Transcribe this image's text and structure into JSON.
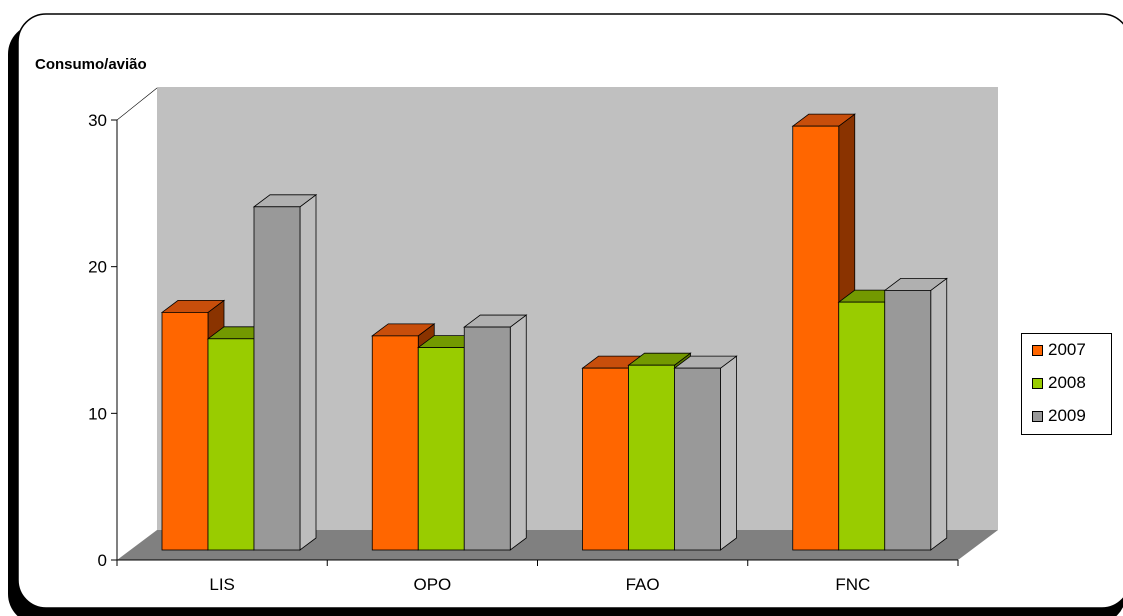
{
  "chart_data": {
    "type": "bar",
    "title": "Consumo/avião",
    "categories": [
      "LIS",
      "OPO",
      "FAO",
      "FNC"
    ],
    "series": [
      {
        "name": "2007",
        "values": [
          16.2,
          14.6,
          12.4,
          28.9
        ],
        "color": "#ff6600",
        "top_color": "#c84e0b",
        "side_color": "#8a3300"
      },
      {
        "name": "2008",
        "values": [
          14.4,
          13.8,
          12.6,
          16.9
        ],
        "color": "#99cc00",
        "top_color": "#739900",
        "side_color": "#5a7800"
      },
      {
        "name": "2009",
        "values": [
          23.4,
          15.2,
          12.4,
          17.7
        ],
        "color": "#999999",
        "top_color": "#b0b0b0",
        "side_color": "#bdbdbd"
      }
    ],
    "yticks": [
      0,
      10,
      20,
      30
    ],
    "ylim": [
      0,
      30
    ],
    "grid": false,
    "legend": "right",
    "xlabel": "",
    "ylabel": "",
    "wall_color": "#c0c0c0",
    "floor_color": "#808080"
  }
}
